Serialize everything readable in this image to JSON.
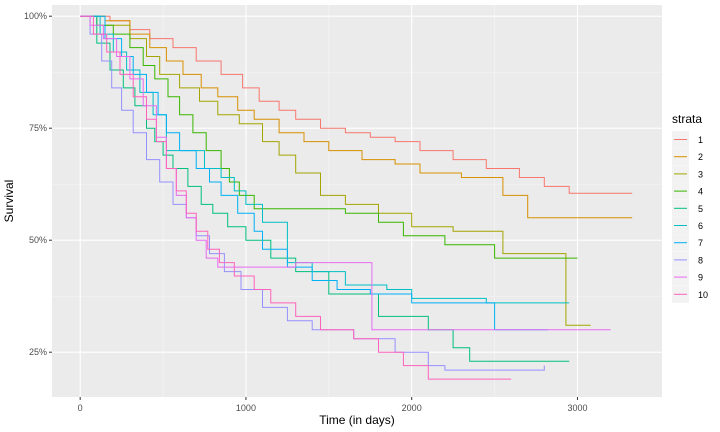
{
  "chart_data": {
    "type": "line",
    "step": true,
    "xlabel": "Time (in days)",
    "ylabel": "Survival",
    "xlim": [
      -170,
      3510
    ],
    "ylim": [
      0.15,
      1.025
    ],
    "x_ticks": [
      0,
      1000,
      2000,
      3000
    ],
    "x_tick_labels": [
      "0",
      "1000",
      "2000",
      "3000"
    ],
    "y_ticks": [
      0.25,
      0.5,
      0.75,
      1.0
    ],
    "y_tick_labels": [
      "25%",
      "50%",
      "75%",
      "100%"
    ],
    "grid": true,
    "legend": {
      "title": "strata",
      "position": "right"
    },
    "series": [
      {
        "name": "1",
        "color": "#F8766D",
        "points": [
          [
            0,
            1.0
          ],
          [
            180,
            0.99
          ],
          [
            300,
            0.97
          ],
          [
            420,
            0.95
          ],
          [
            560,
            0.93
          ],
          [
            700,
            0.9
          ],
          [
            850,
            0.87
          ],
          [
            980,
            0.84
          ],
          [
            1080,
            0.81
          ],
          [
            1200,
            0.79
          ],
          [
            1300,
            0.77
          ],
          [
            1450,
            0.75
          ],
          [
            1600,
            0.74
          ],
          [
            1750,
            0.73
          ],
          [
            1900,
            0.72
          ],
          [
            2050,
            0.7
          ],
          [
            2250,
            0.68
          ],
          [
            2450,
            0.66
          ],
          [
            2650,
            0.64
          ],
          [
            2800,
            0.62
          ],
          [
            2950,
            0.605
          ],
          [
            3330,
            0.605
          ]
        ]
      },
      {
        "name": "2",
        "color": "#D89000",
        "points": [
          [
            0,
            1.0
          ],
          [
            150,
            0.99
          ],
          [
            300,
            0.96
          ],
          [
            420,
            0.93
          ],
          [
            520,
            0.9
          ],
          [
            620,
            0.87
          ],
          [
            730,
            0.84
          ],
          [
            830,
            0.82
          ],
          [
            950,
            0.79
          ],
          [
            1050,
            0.77
          ],
          [
            1200,
            0.74
          ],
          [
            1350,
            0.72
          ],
          [
            1500,
            0.7
          ],
          [
            1700,
            0.68
          ],
          [
            1900,
            0.67
          ],
          [
            2050,
            0.65
          ],
          [
            2300,
            0.64
          ],
          [
            2550,
            0.6
          ],
          [
            2700,
            0.55
          ],
          [
            3330,
            0.55
          ]
        ]
      },
      {
        "name": "3",
        "color": "#A3A500",
        "points": [
          [
            0,
            1.0
          ],
          [
            150,
            0.98
          ],
          [
            300,
            0.95
          ],
          [
            400,
            0.91
          ],
          [
            480,
            0.87
          ],
          [
            600,
            0.84
          ],
          [
            720,
            0.81
          ],
          [
            830,
            0.78
          ],
          [
            960,
            0.76
          ],
          [
            1100,
            0.72
          ],
          [
            1200,
            0.69
          ],
          [
            1300,
            0.65
          ],
          [
            1450,
            0.6
          ],
          [
            1600,
            0.58
          ],
          [
            1800,
            0.56
          ],
          [
            2000,
            0.53
          ],
          [
            2250,
            0.52
          ],
          [
            2550,
            0.47
          ],
          [
            2900,
            0.47
          ],
          [
            2930,
            0.31
          ],
          [
            3080,
            0.31
          ]
        ]
      },
      {
        "name": "4",
        "color": "#39B600",
        "points": [
          [
            0,
            1.0
          ],
          [
            100,
            0.98
          ],
          [
            200,
            0.96
          ],
          [
            300,
            0.93
          ],
          [
            380,
            0.89
          ],
          [
            450,
            0.86
          ],
          [
            530,
            0.82
          ],
          [
            600,
            0.78
          ],
          [
            680,
            0.74
          ],
          [
            760,
            0.7
          ],
          [
            850,
            0.66
          ],
          [
            900,
            0.63
          ],
          [
            960,
            0.6
          ],
          [
            1050,
            0.57
          ],
          [
            1600,
            0.56
          ],
          [
            1800,
            0.54
          ],
          [
            1950,
            0.51
          ],
          [
            2200,
            0.49
          ],
          [
            2500,
            0.46
          ],
          [
            3000,
            0.46
          ]
        ]
      },
      {
        "name": "5",
        "color": "#00BF7D",
        "points": [
          [
            0,
            1.0
          ],
          [
            100,
            0.94
          ],
          [
            180,
            0.88
          ],
          [
            260,
            0.84
          ],
          [
            330,
            0.8
          ],
          [
            400,
            0.75
          ],
          [
            450,
            0.72
          ],
          [
            500,
            0.69
          ],
          [
            560,
            0.66
          ],
          [
            650,
            0.62
          ],
          [
            730,
            0.58
          ],
          [
            800,
            0.56
          ],
          [
            890,
            0.53
          ],
          [
            1000,
            0.5
          ],
          [
            1150,
            0.46
          ],
          [
            1300,
            0.43
          ],
          [
            1500,
            0.38
          ],
          [
            1800,
            0.33
          ],
          [
            2100,
            0.3
          ],
          [
            2250,
            0.26
          ],
          [
            2350,
            0.23
          ],
          [
            2950,
            0.23
          ]
        ]
      },
      {
        "name": "6",
        "color": "#00BFC4",
        "points": [
          [
            0,
            1.0
          ],
          [
            120,
            0.96
          ],
          [
            200,
            0.92
          ],
          [
            280,
            0.88
          ],
          [
            360,
            0.83
          ],
          [
            440,
            0.78
          ],
          [
            520,
            0.7
          ],
          [
            750,
            0.66
          ],
          [
            850,
            0.64
          ],
          [
            930,
            0.61
          ],
          [
            1000,
            0.58
          ],
          [
            1100,
            0.54
          ],
          [
            1250,
            0.45
          ],
          [
            1400,
            0.43
          ],
          [
            1600,
            0.4
          ],
          [
            1850,
            0.39
          ],
          [
            2000,
            0.37
          ],
          [
            2450,
            0.36
          ],
          [
            2950,
            0.36
          ]
        ]
      },
      {
        "name": "7",
        "color": "#00B0F6",
        "points": [
          [
            0,
            1.0
          ],
          [
            150,
            0.95
          ],
          [
            250,
            0.91
          ],
          [
            320,
            0.87
          ],
          [
            400,
            0.83
          ],
          [
            470,
            0.78
          ],
          [
            520,
            0.74
          ],
          [
            600,
            0.7
          ],
          [
            700,
            0.66
          ],
          [
            780,
            0.63
          ],
          [
            850,
            0.6
          ],
          [
            950,
            0.56
          ],
          [
            1050,
            0.52
          ],
          [
            1100,
            0.48
          ],
          [
            1250,
            0.44
          ],
          [
            1400,
            0.41
          ],
          [
            1550,
            0.39
          ],
          [
            1750,
            0.38
          ],
          [
            2000,
            0.36
          ],
          [
            2500,
            0.3
          ],
          [
            2820,
            0.3
          ]
        ]
      },
      {
        "name": "8",
        "color": "#9590FF",
        "points": [
          [
            0,
            1.0
          ],
          [
            60,
            0.96
          ],
          [
            130,
            0.9
          ],
          [
            190,
            0.84
          ],
          [
            250,
            0.79
          ],
          [
            320,
            0.74
          ],
          [
            400,
            0.68
          ],
          [
            480,
            0.63
          ],
          [
            560,
            0.58
          ],
          [
            640,
            0.55
          ],
          [
            700,
            0.51
          ],
          [
            780,
            0.47
          ],
          [
            870,
            0.43
          ],
          [
            970,
            0.39
          ],
          [
            1100,
            0.35
          ],
          [
            1250,
            0.32
          ],
          [
            1400,
            0.3
          ],
          [
            1650,
            0.28
          ],
          [
            1900,
            0.25
          ],
          [
            2100,
            0.22
          ],
          [
            2200,
            0.21
          ],
          [
            2650,
            0.21
          ],
          [
            2800,
            0.22
          ]
        ]
      },
      {
        "name": "9",
        "color": "#E76BF3",
        "points": [
          [
            0,
            1.0
          ],
          [
            60,
            0.98
          ],
          [
            140,
            0.95
          ],
          [
            220,
            0.91
          ],
          [
            300,
            0.86
          ],
          [
            380,
            0.8
          ],
          [
            460,
            0.73
          ],
          [
            520,
            0.66
          ],
          [
            580,
            0.6
          ],
          [
            640,
            0.55
          ],
          [
            700,
            0.5
          ],
          [
            760,
            0.46
          ],
          [
            830,
            0.44
          ],
          [
            1300,
            0.45
          ],
          [
            1600,
            0.45
          ],
          [
            1760,
            0.3
          ],
          [
            2200,
            0.3
          ],
          [
            3200,
            0.3
          ]
        ]
      },
      {
        "name": "10",
        "color": "#FF62BC",
        "points": [
          [
            0,
            1.0
          ],
          [
            80,
            0.96
          ],
          [
            160,
            0.92
          ],
          [
            240,
            0.87
          ],
          [
            320,
            0.82
          ],
          [
            400,
            0.77
          ],
          [
            460,
            0.72
          ],
          [
            520,
            0.66
          ],
          [
            580,
            0.61
          ],
          [
            640,
            0.56
          ],
          [
            700,
            0.52
          ],
          [
            770,
            0.48
          ],
          [
            840,
            0.45
          ],
          [
            930,
            0.42
          ],
          [
            1050,
            0.39
          ],
          [
            1150,
            0.36
          ],
          [
            1300,
            0.33
          ],
          [
            1450,
            0.3
          ],
          [
            1650,
            0.28
          ],
          [
            1800,
            0.25
          ],
          [
            1950,
            0.22
          ],
          [
            2100,
            0.19
          ],
          [
            2200,
            0.19
          ],
          [
            2600,
            0.19
          ]
        ]
      }
    ]
  }
}
